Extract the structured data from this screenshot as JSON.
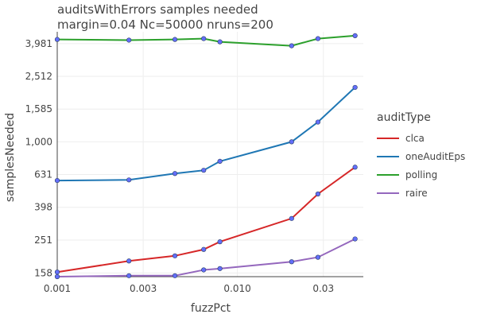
{
  "chart_data": {
    "type": "line",
    "title": "auditsWithErrors samples needed",
    "subtitle": "margin=0.04 Nc=50000 nruns=200",
    "xlabel": "fuzzPct",
    "ylabel": "samplesNeeded",
    "x_scale": "log",
    "y_scale": "log",
    "xlim": [
      0.001,
      0.05
    ],
    "ylim": [
      150,
      4700
    ],
    "x_ticks": [
      {
        "value": 0.001,
        "label": "0.001"
      },
      {
        "value": 0.003,
        "label": "0.003"
      },
      {
        "value": 0.01,
        "label": "0.010"
      },
      {
        "value": 0.03,
        "label": "0.03"
      }
    ],
    "y_ticks": [
      {
        "value": 158,
        "label": "158"
      },
      {
        "value": 251,
        "label": "251"
      },
      {
        "value": 398,
        "label": "398"
      },
      {
        "value": 631,
        "label": "631"
      },
      {
        "value": 1000,
        "label": "1,000"
      },
      {
        "value": 1585,
        "label": "1,585"
      },
      {
        "value": 2512,
        "label": "2,512"
      },
      {
        "value": 3981,
        "label": "3,981"
      }
    ],
    "legend_title": "auditType",
    "legend_position": "right",
    "x": [
      0.001,
      0.0025,
      0.0045,
      0.0065,
      0.008,
      0.02,
      0.028,
      0.045
    ],
    "series": [
      {
        "name": "clca",
        "color": "#d62728",
        "values": [
          160,
          187,
          201,
          220,
          245,
          340,
          480,
          700
        ]
      },
      {
        "name": "oneAuditEps",
        "color": "#1f77b4",
        "values": [
          580,
          585,
          640,
          670,
          760,
          1000,
          1320,
          2150
        ]
      },
      {
        "name": "polling",
        "color": "#2ca02c",
        "values": [
          4220,
          4180,
          4220,
          4270,
          4080,
          3860,
          4270,
          4450
        ]
      },
      {
        "name": "raire",
        "color": "#9467bd",
        "values": [
          150,
          152,
          152,
          165,
          168,
          185,
          197,
          255
        ]
      }
    ]
  }
}
